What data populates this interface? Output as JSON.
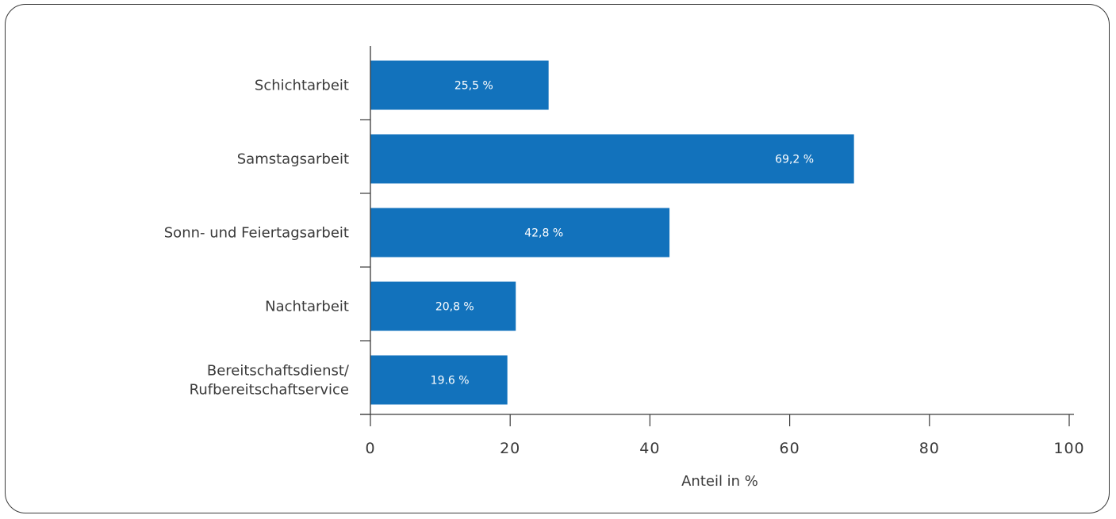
{
  "chart_data": {
    "type": "bar",
    "orientation": "horizontal",
    "categories": [
      [
        "Schichtarbeit"
      ],
      [
        "Samstagsarbeit"
      ],
      [
        "Sonn- und Feiertagsarbeit"
      ],
      [
        "Nachtarbeit"
      ],
      [
        "Bereitschaftsdienst/",
        "Rufbereitschaftservice"
      ]
    ],
    "values": [
      25.5,
      69.2,
      42.8,
      20.8,
      19.6
    ],
    "value_labels": [
      "25,5 %",
      "69,2 %",
      "42,8 %",
      "20,8 %",
      "19.6 %"
    ],
    "xlabel": "Anteil in %",
    "ylabel": "",
    "xlim": [
      0,
      100
    ],
    "xticks": [
      0,
      20,
      40,
      60,
      80,
      100
    ],
    "xtick_labels": [
      "0",
      "20",
      "40",
      "60",
      "80",
      "100"
    ],
    "grid": false,
    "colors": {
      "bar": "#1272BC",
      "axis": "#3a3a3a",
      "frame": "#3a3a3a"
    }
  }
}
